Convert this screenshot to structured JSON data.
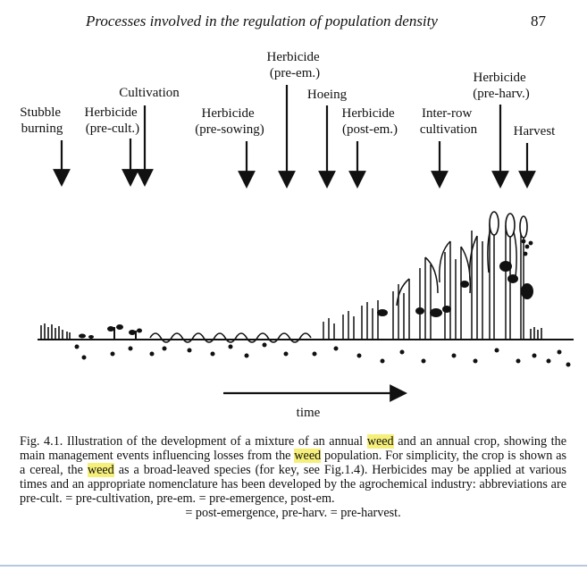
{
  "header": {
    "running_title": "Processes involved in the regulation of population density",
    "page_number": "87"
  },
  "figure": {
    "events": [
      {
        "lines": [
          "Stubble",
          "burning"
        ]
      },
      {
        "lines": [
          "Herbicide",
          "(pre-cult.)"
        ]
      },
      {
        "lines": [
          "Cultivation"
        ]
      },
      {
        "lines": [
          "Herbicide",
          "(pre-sowing)"
        ]
      },
      {
        "lines": [
          "Herbicide",
          "(pre-em.)"
        ]
      },
      {
        "lines": [
          "Hoeing"
        ]
      },
      {
        "lines": [
          "Herbicide",
          "(post-em.)"
        ]
      },
      {
        "lines": [
          "Inter-row",
          "cultivation"
        ]
      },
      {
        "lines": [
          "Herbicide",
          "(pre-harv.)"
        ]
      },
      {
        "lines": [
          "Harvest"
        ]
      }
    ],
    "time_label": "time"
  },
  "caption": {
    "p1": "Fig. 4.1. Illustration of the development of a mixture of an annual ",
    "w1": "weed",
    "p2": " and an annual crop, showing the main management events influencing losses from the ",
    "w2": "weed",
    "p3": " population. For simplicity, the crop is shown as a cereal, the ",
    "w3": "weed",
    "p4": " as a broad-leaved species (for key, see Fig.1.4). Herbicides may be applied at various times and an appropriate nomenclature has been developed by the agrochemical industry: abbreviations are pre-cult. = pre-cultivation, pre-em. = pre-emergence, post-em.",
    "p5": "= post-emergence, pre-harv. = pre-harvest."
  }
}
